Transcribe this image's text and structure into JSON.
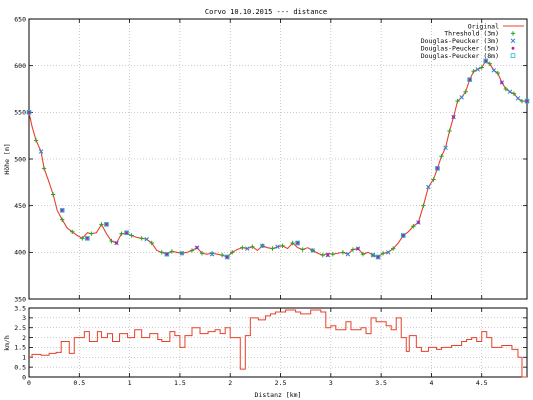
{
  "chart_data": [
    {
      "type": "line",
      "title": "Corvo 10.10.2015 --- distance",
      "xlabel": "",
      "ylabel": "Höhe [m]",
      "xlim": [
        0,
        4.95
      ],
      "ylim": [
        350,
        650
      ],
      "xticks": [
        "0",
        "0.5",
        "1",
        "1.5",
        "2",
        "2.5",
        "3",
        "3.5",
        "4",
        "4.5"
      ],
      "yticks": [
        "350",
        "400",
        "450",
        "500",
        "550",
        "600",
        "650"
      ],
      "grid": true,
      "legend_position": "top-right",
      "series": [
        {
          "name": "Original",
          "color": "#e8402a",
          "marker": "line",
          "x": [
            0,
            0.03,
            0.07,
            0.12,
            0.15,
            0.19,
            0.24,
            0.28,
            0.33,
            0.38,
            0.43,
            0.48,
            0.53,
            0.58,
            0.62,
            0.67,
            0.72,
            0.77,
            0.82,
            0.87,
            0.92,
            0.97,
            1.02,
            1.07,
            1.12,
            1.17,
            1.22,
            1.27,
            1.32,
            1.37,
            1.42,
            1.47,
            1.52,
            1.57,
            1.62,
            1.67,
            1.72,
            1.77,
            1.82,
            1.87,
            1.92,
            1.97,
            2.02,
            2.07,
            2.12,
            2.17,
            2.22,
            2.27,
            2.32,
            2.37,
            2.42,
            2.47,
            2.52,
            2.57,
            2.62,
            2.67,
            2.72,
            2.77,
            2.82,
            2.87,
            2.92,
            2.97,
            3.02,
            3.07,
            3.12,
            3.17,
            3.22,
            3.27,
            3.32,
            3.37,
            3.42,
            3.47,
            3.52,
            3.57,
            3.62,
            3.67,
            3.72,
            3.77,
            3.82,
            3.87,
            3.92,
            3.97,
            4.02,
            4.06,
            4.1,
            4.14,
            4.18,
            4.22,
            4.26,
            4.3,
            4.34,
            4.38,
            4.42,
            4.46,
            4.5,
            4.54,
            4.58,
            4.62,
            4.66,
            4.7,
            4.74,
            4.78,
            4.82,
            4.86,
            4.9,
            4.95
          ],
          "y": [
            550,
            535,
            520,
            508,
            490,
            478,
            462,
            445,
            435,
            426,
            422,
            418,
            415,
            421,
            420,
            421,
            430,
            420,
            412,
            410,
            420,
            420,
            418,
            416,
            415,
            414,
            410,
            402,
            400,
            398,
            401,
            400,
            399,
            400,
            402,
            405,
            399,
            398,
            399,
            398,
            397,
            395,
            400,
            403,
            405,
            404,
            406,
            402,
            407,
            405,
            404,
            406,
            407,
            404,
            410,
            405,
            403,
            405,
            402,
            399,
            397,
            399,
            398,
            399,
            400,
            398,
            403,
            404,
            398,
            400,
            397,
            395,
            399,
            400,
            404,
            410,
            418,
            422,
            428,
            432,
            450,
            470,
            478,
            490,
            503,
            512,
            530,
            545,
            562,
            566,
            572,
            585,
            594,
            596,
            598,
            605,
            602,
            595,
            592,
            582,
            575,
            572,
            570,
            565,
            562,
            562
          ]
        },
        {
          "name": "Threshold (3m)",
          "color": "#2aa02a",
          "marker": "+",
          "x": [
            0,
            0.07,
            0.15,
            0.24,
            0.33,
            0.43,
            0.53,
            0.62,
            0.72,
            0.82,
            0.92,
            1.02,
            1.12,
            1.22,
            1.32,
            1.42,
            1.52,
            1.62,
            1.72,
            1.82,
            1.92,
            2.02,
            2.12,
            2.22,
            2.32,
            2.42,
            2.52,
            2.62,
            2.72,
            2.82,
            2.92,
            3.02,
            3.12,
            3.22,
            3.32,
            3.42,
            3.52,
            3.62,
            3.72,
            3.82,
            3.92,
            4.02,
            4.1,
            4.18,
            4.26,
            4.34,
            4.42,
            4.5,
            4.58,
            4.66,
            4.74,
            4.82,
            4.9
          ],
          "y": [
            550,
            520,
            490,
            462,
            435,
            422,
            415,
            420,
            430,
            412,
            420,
            418,
            415,
            410,
            400,
            401,
            399,
            402,
            399,
            399,
            397,
            400,
            405,
            406,
            407,
            404,
            407,
            410,
            403,
            402,
            397,
            398,
            400,
            403,
            398,
            397,
            399,
            404,
            418,
            428,
            450,
            478,
            503,
            530,
            562,
            572,
            594,
            598,
            602,
            592,
            575,
            570,
            562
          ]
        },
        {
          "name": "Douglas-Peucker (3m)",
          "color": "#2a7fd5",
          "marker": "x",
          "x": [
            0,
            0.12,
            0.33,
            0.58,
            0.77,
            0.87,
            0.97,
            1.17,
            1.37,
            1.52,
            1.67,
            1.82,
            1.97,
            2.17,
            2.32,
            2.47,
            2.67,
            2.82,
            2.97,
            3.17,
            3.27,
            3.42,
            3.47,
            3.57,
            3.72,
            3.87,
            3.97,
            4.06,
            4.14,
            4.22,
            4.3,
            4.38,
            4.46,
            4.54,
            4.62,
            4.7,
            4.78,
            4.86,
            4.95
          ],
          "y": [
            550,
            508,
            445,
            415,
            430,
            410,
            421,
            414,
            398,
            399,
            405,
            398,
            395,
            404,
            407,
            406,
            410,
            402,
            397,
            398,
            404,
            397,
            395,
            400,
            418,
            432,
            470,
            490,
            512,
            545,
            566,
            585,
            596,
            605,
            595,
            582,
            572,
            565,
            562
          ]
        },
        {
          "name": "Douglas-Peucker (5m)",
          "color": "#b01fa8",
          "marker": "*",
          "x": [
            0,
            0.33,
            0.58,
            0.77,
            0.87,
            0.97,
            1.37,
            1.67,
            1.97,
            2.67,
            2.97,
            3.27,
            3.47,
            3.72,
            3.87,
            4.06,
            4.22,
            4.38,
            4.54,
            4.7,
            4.95
          ],
          "y": [
            550,
            445,
            415,
            430,
            410,
            421,
            398,
            405,
            395,
            410,
            397,
            404,
            395,
            418,
            432,
            490,
            545,
            585,
            605,
            582,
            562
          ]
        },
        {
          "name": "Douglas-Peucker (8m)",
          "color": "#22b8c8",
          "marker": "square",
          "x": [
            0,
            0.33,
            0.58,
            0.77,
            0.97,
            1.37,
            1.97,
            2.67,
            3.47,
            3.72,
            4.06,
            4.38,
            4.54,
            4.95
          ],
          "y": [
            550,
            445,
            415,
            430,
            421,
            398,
            395,
            410,
            395,
            418,
            490,
            585,
            605,
            562
          ]
        }
      ]
    },
    {
      "type": "line",
      "title": "",
      "xlabel": "Distanz [km]",
      "ylabel": "km/h",
      "xlim": [
        0,
        4.95
      ],
      "ylim": [
        0,
        3.5
      ],
      "xticks": [
        "0",
        "0.5",
        "1",
        "1.5",
        "2",
        "2.5",
        "3",
        "3.5",
        "4",
        "4.5"
      ],
      "yticks": [
        "0",
        "0.5",
        "1",
        "1.5",
        "2",
        "2.5",
        "3",
        "3.5"
      ],
      "grid": true,
      "series": [
        {
          "name": "",
          "color": "#e8402a",
          "step": true,
          "x": [
            0,
            0.03,
            0.12,
            0.2,
            0.27,
            0.32,
            0.4,
            0.45,
            0.55,
            0.6,
            0.68,
            0.72,
            0.78,
            0.83,
            0.9,
            0.98,
            1.05,
            1.12,
            1.2,
            1.28,
            1.32,
            1.4,
            1.45,
            1.5,
            1.55,
            1.62,
            1.7,
            1.78,
            1.85,
            1.9,
            1.95,
            2.0,
            2.1,
            2.15,
            2.2,
            2.28,
            2.35,
            2.4,
            2.45,
            2.55,
            2.65,
            2.7,
            2.8,
            2.9,
            2.95,
            3.0,
            3.05,
            3.15,
            3.2,
            3.3,
            3.35,
            3.4,
            3.45,
            3.55,
            3.6,
            3.65,
            3.7,
            3.75,
            3.78,
            3.85,
            3.9,
            3.97,
            4.05,
            4.1,
            4.2,
            4.3,
            4.35,
            4.4,
            4.45,
            4.5,
            4.55,
            4.6,
            4.7,
            4.8,
            4.86,
            4.9
          ],
          "y": [
            1.0,
            1.15,
            1.1,
            1.2,
            1.25,
            1.8,
            1.2,
            2.0,
            2.3,
            1.8,
            2.3,
            2.0,
            2.2,
            1.8,
            2.2,
            2.0,
            2.4,
            2.0,
            2.2,
            1.9,
            1.8,
            2.3,
            2.1,
            1.5,
            2.1,
            2.5,
            2.2,
            2.3,
            2.4,
            2.2,
            2.5,
            2.0,
            0.4,
            2.1,
            3.0,
            2.9,
            3.1,
            3.2,
            3.3,
            3.4,
            3.3,
            3.2,
            3.4,
            3.3,
            2.5,
            2.6,
            2.4,
            2.8,
            2.4,
            2.5,
            2.2,
            3.0,
            2.8,
            2.6,
            2.4,
            3.0,
            2.0,
            1.3,
            2.1,
            1.5,
            1.3,
            1.5,
            1.4,
            1.5,
            1.6,
            1.8,
            1.9,
            2.0,
            1.8,
            2.3,
            2.0,
            1.5,
            1.6,
            1.4,
            1.0,
            0.0
          ]
        }
      ]
    }
  ]
}
